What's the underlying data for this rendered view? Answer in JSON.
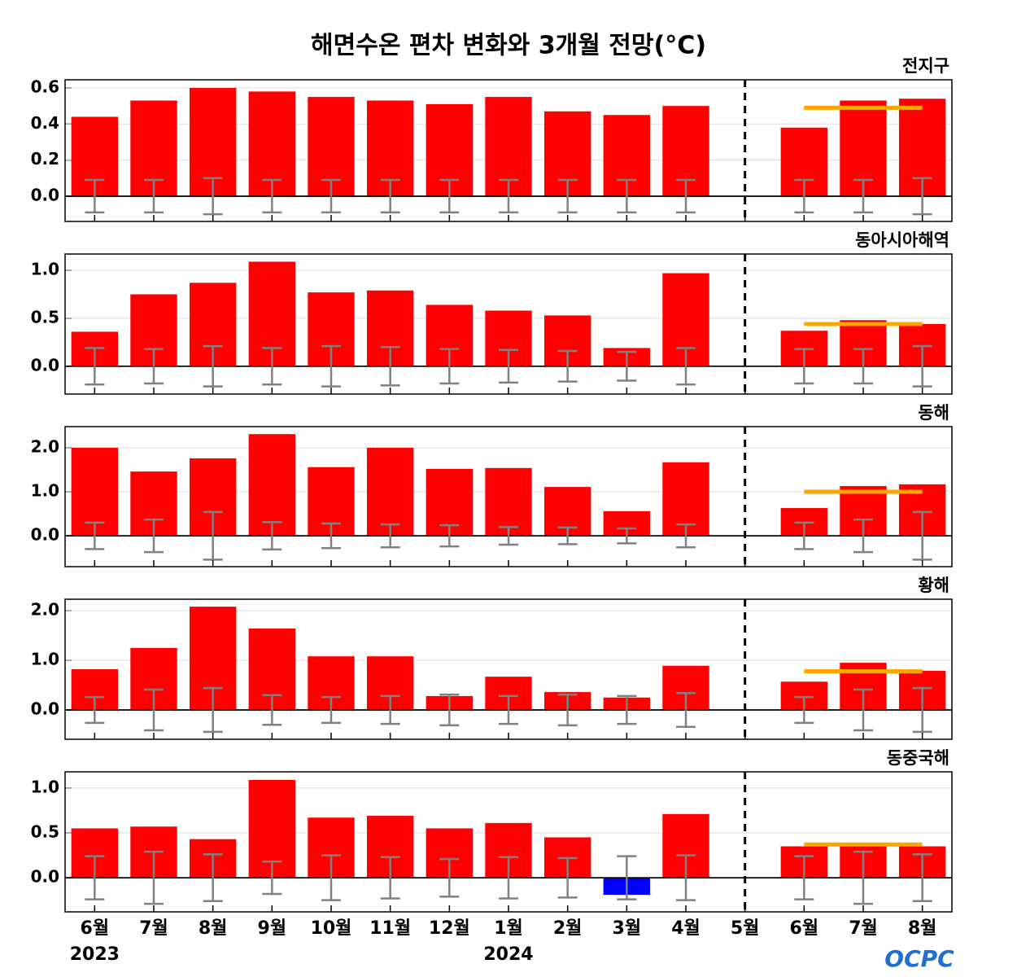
{
  "chart_data": {
    "type": "bar",
    "title": "해면수온 편차 변화와 3개월 전망(°C)",
    "categories": [
      "6월",
      "7월",
      "8월",
      "9월",
      "10월",
      "11월",
      "12월",
      "1월",
      "2월",
      "3월",
      "4월",
      "5월",
      "6월",
      "7월",
      "8월"
    ],
    "years": [
      "2023",
      null,
      null,
      null,
      null,
      null,
      null,
      "2024",
      null,
      null,
      null,
      null,
      null,
      null,
      null
    ],
    "logo": "OCPC",
    "color": "#ff0000",
    "negative_color": "#0000ff",
    "error_color": "#808080",
    "forecast_color": "#ffa500",
    "grid": true,
    "panels": [
      {
        "title": "전지구",
        "ylim": [
          -0.14,
          0.645
        ],
        "yticks": [
          {
            "value": 0,
            "label": "0.0"
          },
          0.2,
          0.4,
          0.6
        ],
        "values": [
          0.44,
          0.53,
          0.6,
          0.58,
          0.55,
          0.53,
          0.51,
          0.55,
          0.47,
          0.45,
          0.5,
          null,
          0.38,
          0.53,
          0.54
        ],
        "errors": [
          0.09,
          0.09,
          0.1,
          0.09,
          0.09,
          0.09,
          0.09,
          0.09,
          0.09,
          0.09,
          0.09,
          null,
          0.09,
          0.09,
          0.1
        ],
        "forecast": [
          null,
          null,
          null,
          null,
          null,
          null,
          null,
          null,
          null,
          null,
          null,
          null,
          0.49,
          0.49,
          0.49
        ]
      },
      {
        "title": "동아시아해역",
        "ylim": [
          -0.29,
          1.17
        ],
        "yticks": [
          {
            "value": 0,
            "label": "0.0"
          },
          0.5,
          {
            "value": 1,
            "label": "1.0"
          }
        ],
        "values": [
          0.36,
          0.75,
          0.87,
          1.09,
          0.77,
          0.79,
          0.64,
          0.58,
          0.53,
          0.19,
          0.97,
          null,
          0.37,
          0.48,
          0.44
        ],
        "errors": [
          0.19,
          0.18,
          0.21,
          0.19,
          0.21,
          0.2,
          0.18,
          0.17,
          0.16,
          0.15,
          0.19,
          null,
          0.18,
          0.18,
          0.21
        ],
        "forecast": [
          null,
          null,
          null,
          null,
          null,
          null,
          null,
          null,
          null,
          null,
          null,
          null,
          0.44,
          0.44,
          0.44
        ]
      },
      {
        "title": "동해",
        "ylim": [
          -0.7,
          2.48
        ],
        "yticks": [
          {
            "value": 0,
            "label": "0.0"
          },
          {
            "value": 1,
            "label": "1.0"
          },
          {
            "value": 2,
            "label": "2.0"
          }
        ],
        "values": [
          2.0,
          1.46,
          1.76,
          2.31,
          1.56,
          2.0,
          1.52,
          1.54,
          1.11,
          0.56,
          1.67,
          null,
          0.63,
          1.13,
          1.17
        ],
        "errors": [
          0.3,
          0.37,
          0.54,
          0.31,
          0.28,
          0.26,
          0.24,
          0.2,
          0.19,
          0.17,
          0.26,
          null,
          0.3,
          0.37,
          0.54
        ],
        "forecast": [
          null,
          null,
          null,
          null,
          null,
          null,
          null,
          null,
          null,
          null,
          null,
          null,
          1.0,
          1.0,
          1.0
        ]
      },
      {
        "title": "황해",
        "ylim": [
          -0.59,
          2.23
        ],
        "yticks": [
          {
            "value": 0,
            "label": "0.0"
          },
          {
            "value": 1,
            "label": "1.0"
          },
          {
            "value": 2,
            "label": "2.0"
          }
        ],
        "values": [
          0.82,
          1.25,
          2.08,
          1.64,
          1.08,
          1.08,
          0.28,
          0.67,
          0.36,
          0.25,
          0.89,
          null,
          0.57,
          0.95,
          0.79
        ],
        "errors": [
          0.26,
          0.41,
          0.44,
          0.3,
          0.26,
          0.28,
          0.31,
          0.28,
          0.31,
          0.28,
          0.34,
          null,
          0.26,
          0.41,
          0.44
        ],
        "forecast": [
          null,
          null,
          null,
          null,
          null,
          null,
          null,
          null,
          null,
          null,
          null,
          null,
          0.78,
          0.78,
          0.78
        ]
      },
      {
        "title": "동중국해",
        "ylim": [
          -0.38,
          1.18
        ],
        "yticks": [
          {
            "value": 0,
            "label": "0.0"
          },
          0.5,
          {
            "value": 1,
            "label": "1.0"
          }
        ],
        "values": [
          0.55,
          0.57,
          0.43,
          1.09,
          0.67,
          0.69,
          0.55,
          0.61,
          0.45,
          -0.19,
          0.71,
          null,
          0.35,
          0.39,
          0.35
        ],
        "errors": [
          0.24,
          0.29,
          0.26,
          0.18,
          0.25,
          0.23,
          0.21,
          0.23,
          0.22,
          0.24,
          0.25,
          null,
          0.24,
          0.29,
          0.26
        ],
        "forecast": [
          null,
          null,
          null,
          null,
          null,
          null,
          null,
          null,
          null,
          null,
          null,
          null,
          0.37,
          0.37,
          0.37
        ]
      }
    ]
  }
}
